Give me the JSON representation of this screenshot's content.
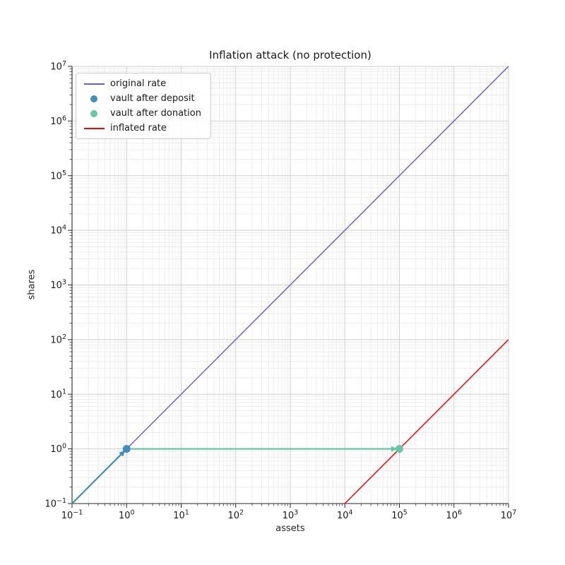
{
  "title": "Inflation attack (no protection)",
  "axes": {
    "xlabel": "assets",
    "ylabel": "shares"
  },
  "chart_data": {
    "type": "line",
    "title": "Inflation attack (no protection)",
    "xlabel": "assets",
    "ylabel": "shares",
    "x_scale": "log",
    "y_scale": "log",
    "xlim": [
      0.1,
      10000000
    ],
    "ylim": [
      0.1,
      10000000
    ],
    "x_tick_exponents": [
      -1,
      0,
      1,
      2,
      3,
      4,
      5,
      6,
      7
    ],
    "y_tick_exponents": [
      -1,
      0,
      1,
      2,
      3,
      4,
      5,
      6,
      7
    ],
    "grid": "both",
    "legend_position": "upper left",
    "colors": {
      "original_rate": "#6a5acd",
      "vault_after_deposit": "#3f8ebc",
      "vault_after_donation": "#66c7a4",
      "inflated_rate": "#ff0000",
      "major_grid": "#cfcfcf",
      "minor_grid": "#e9e9e9",
      "spine": "#262626",
      "text": "#1a1a1a"
    },
    "series": [
      {
        "name": "original rate",
        "kind": "line",
        "color": "#6a5acd",
        "linewidth": 1.4,
        "points": [
          [
            0.1,
            0.1
          ],
          [
            10000000,
            10000000
          ]
        ]
      },
      {
        "name": "deposit path",
        "kind": "arrow",
        "color": "#3f8ebc",
        "linewidth": 2.2,
        "points": [
          [
            0.1,
            0.1
          ],
          [
            1,
            1
          ]
        ]
      },
      {
        "name": "donation path",
        "kind": "arrow",
        "color": "#66c7a4",
        "linewidth": 2.2,
        "points": [
          [
            1,
            1
          ],
          [
            100000,
            1
          ]
        ]
      },
      {
        "name": "inflated rate",
        "kind": "line",
        "color": "#ff0000",
        "linewidth": 1.5,
        "points": [
          [
            10000,
            0.1
          ],
          [
            10000000,
            100
          ]
        ]
      },
      {
        "name": "vault after deposit",
        "kind": "scatter",
        "color": "#3f8ebc",
        "markersize": 5.5,
        "points": [
          [
            1,
            1
          ]
        ]
      },
      {
        "name": "vault after donation",
        "kind": "scatter",
        "color": "#66c7a4",
        "markersize": 5.5,
        "points": [
          [
            100000,
            1
          ]
        ]
      }
    ],
    "legend": {
      "items": [
        {
          "label": "original rate",
          "marker": "line",
          "color": "#6a5acd"
        },
        {
          "label": "vault after deposit",
          "marker": "dot",
          "color": "#3f8ebc"
        },
        {
          "label": "vault after donation",
          "marker": "dot",
          "color": "#66c7a4"
        },
        {
          "label": "inflated rate",
          "marker": "line",
          "color": "#ff0000"
        }
      ]
    }
  }
}
